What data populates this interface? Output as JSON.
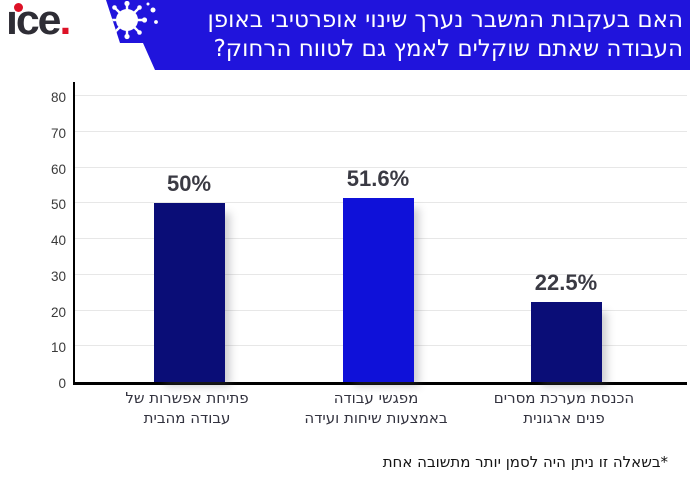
{
  "logo": {
    "i_letter": "ı",
    "rest": "ce",
    "period": ".",
    "text_color": "#2e2d35",
    "accent_color": "#dd1126"
  },
  "banner": {
    "line1": "האם בעקבות המשבר נערך שינוי אופרטיבי באופן",
    "line2": "העבודה שאתם שוקלים לאמץ גם לטווח הרחוק?",
    "bg_color": "#2014dc",
    "text_color": "#ffffff",
    "icon": "coronavirus-icon"
  },
  "chart_data": {
    "type": "bar",
    "title": "",
    "xlabel": "",
    "ylabel": "",
    "categories": [
      "פתיחת אפשרות של\nעבודה מהבית",
      "מפגשי עבודה\nבאמצעות שיחות ועידה",
      "הכנסת מערכת מסרים\nפנים ארגונית"
    ],
    "values": [
      50,
      51.6,
      22.5
    ],
    "value_labels": [
      "50%",
      "51.6%",
      "22.5%"
    ],
    "bar_colors": [
      "#0a0d77",
      "#0f11d9",
      "#0a0d77"
    ],
    "ylim": [
      0,
      80
    ],
    "yticks": [
      0,
      10,
      20,
      30,
      40,
      50,
      60,
      70,
      80
    ],
    "grid": "horizontal",
    "grid_color": "#e7e7e7",
    "axis_color": "#000000",
    "legend_position": "none"
  },
  "footnote": {
    "text": "*בשאלה זו ניתן היה לסמן יותר מתשובה אחת"
  }
}
